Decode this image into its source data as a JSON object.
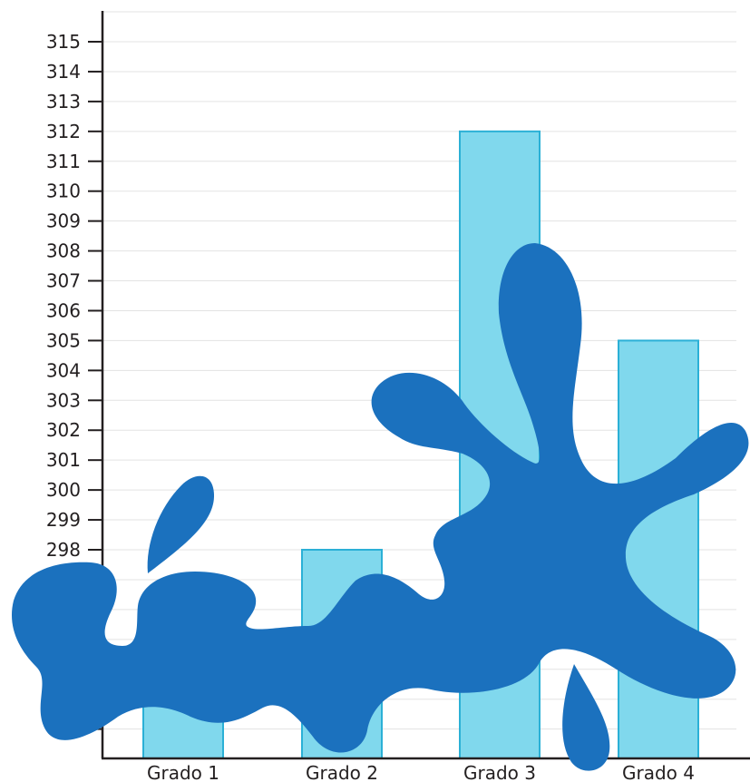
{
  "chart_data": {
    "type": "bar",
    "categories": [
      "Grado 1",
      "Grado 2",
      "Grado 3",
      "Grado 4"
    ],
    "values": [
      null,
      298,
      312,
      305
    ],
    "yticks": [
      315,
      314,
      313,
      312,
      311,
      310,
      309,
      308,
      307,
      306,
      305,
      304,
      303,
      302,
      301,
      300,
      299,
      298
    ],
    "ylim": [
      291,
      316
    ],
    "grid": true,
    "title": "",
    "xlabel": "",
    "ylabel": ""
  },
  "colors": {
    "bar_fill": "#80d8ed",
    "bar_stroke": "#2bb0d6",
    "splash": "#1b71be",
    "grid": "#e3e3e3",
    "axis": "#231f20"
  },
  "decoration": {
    "splash": "ink-splash-blob"
  }
}
